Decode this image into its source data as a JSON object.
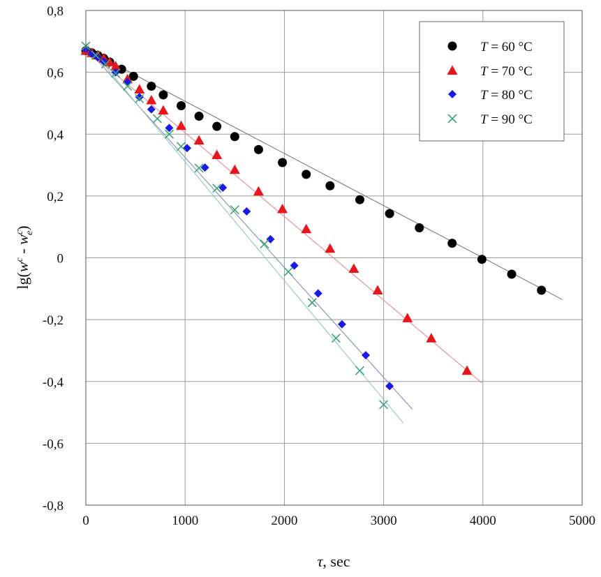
{
  "chart_data": {
    "type": "scatter",
    "xlabel": {
      "var": "τ",
      "unit": ", sec"
    },
    "ylabel": {
      "pre": "lg(",
      "w1": "w",
      "sup1": "c",
      "mid": " - ",
      "w2": "w",
      "sup2": "c",
      "sub2": "e",
      "post": ")"
    },
    "xlim": [
      0,
      5000
    ],
    "ylim": [
      -0.8,
      0.8
    ],
    "x_ticks": [
      0,
      1000,
      2000,
      3000,
      4000,
      5000
    ],
    "x_tick_labels": [
      "0",
      "1000",
      "2000",
      "3000",
      "4000",
      "5000"
    ],
    "y_ticks": [
      -0.8,
      -0.6,
      -0.4,
      -0.2,
      0,
      0.2,
      0.4,
      0.6,
      0.8
    ],
    "y_tick_labels": [
      "-0,8",
      "-0,6",
      "-0,4",
      "-0,2",
      "0",
      "0,2",
      "0,4",
      "0,6",
      "0,8"
    ],
    "grid": true,
    "legend_position": "top-right",
    "series": [
      {
        "name": "T = 60 °C",
        "label_var": "T",
        "label_rest": " = 60 °C",
        "marker": "circle",
        "color": "#000000",
        "fit_color": "#7a7a7a",
        "fit": [
          [
            0,
            0.675
          ],
          [
            4800,
            -0.135
          ]
        ],
        "x": [
          0,
          60,
          120,
          180,
          240,
          360,
          480,
          660,
          780,
          960,
          1140,
          1320,
          1500,
          1740,
          1980,
          2220,
          2460,
          2760,
          3060,
          3360,
          3690,
          3990,
          4290,
          4590
        ],
        "y": [
          0.67,
          0.663,
          0.655,
          0.645,
          0.633,
          0.61,
          0.587,
          0.555,
          0.527,
          0.492,
          0.458,
          0.425,
          0.392,
          0.35,
          0.308,
          0.27,
          0.233,
          0.188,
          0.143,
          0.097,
          0.047,
          -0.005,
          -0.053,
          -0.105
        ]
      },
      {
        "name": "T = 70 °C",
        "label_var": "T",
        "label_rest": " = 70 °C",
        "marker": "triangle",
        "color": "#e8151b",
        "fit_color": "#e48e92",
        "fit": [
          [
            0,
            0.675
          ],
          [
            3990,
            -0.405
          ]
        ],
        "x": [
          0,
          60,
          120,
          180,
          240,
          300,
          420,
          540,
          660,
          780,
          960,
          1140,
          1320,
          1500,
          1740,
          1980,
          2220,
          2460,
          2700,
          2940,
          3240,
          3480,
          3840
        ],
        "y": [
          0.67,
          0.663,
          0.655,
          0.645,
          0.633,
          0.62,
          0.578,
          0.545,
          0.51,
          0.477,
          0.427,
          0.38,
          0.333,
          0.285,
          0.215,
          0.158,
          0.093,
          0.03,
          -0.035,
          -0.105,
          -0.195,
          -0.26,
          -0.365
        ]
      },
      {
        "name": "T = 80 °C",
        "label_var": "T",
        "label_rest": " = 80 °C",
        "marker": "diamond",
        "color": "#1a1ae6",
        "fit_color": "#7f8fb8",
        "fit": [
          [
            0,
            0.68
          ],
          [
            3290,
            -0.49
          ]
        ],
        "x": [
          0,
          60,
          120,
          180,
          300,
          420,
          540,
          660,
          840,
          1020,
          1200,
          1380,
          1620,
          1860,
          2100,
          2340,
          2580,
          2820,
          3060
        ],
        "y": [
          0.675,
          0.66,
          0.648,
          0.635,
          0.6,
          0.568,
          0.52,
          0.48,
          0.42,
          0.355,
          0.292,
          0.227,
          0.15,
          0.06,
          -0.025,
          -0.115,
          -0.215,
          -0.315,
          -0.415
        ]
      },
      {
        "name": "T = 90 °C",
        "label_var": "T",
        "label_rest": " = 90 °C",
        "marker": "cross",
        "color": "#3aa676",
        "fit_color": "#8fc8c0",
        "fit": [
          [
            0,
            0.695
          ],
          [
            3200,
            -0.535
          ]
        ],
        "x": [
          0,
          100,
          200,
          300,
          420,
          540,
          720,
          840,
          960,
          1140,
          1320,
          1500,
          1800,
          2040,
          2280,
          2520,
          2760,
          3000
        ],
        "y": [
          0.685,
          0.655,
          0.627,
          0.597,
          0.555,
          0.515,
          0.45,
          0.4,
          0.36,
          0.29,
          0.225,
          0.155,
          0.045,
          -0.045,
          -0.145,
          -0.26,
          -0.365,
          -0.475
        ]
      }
    ]
  }
}
